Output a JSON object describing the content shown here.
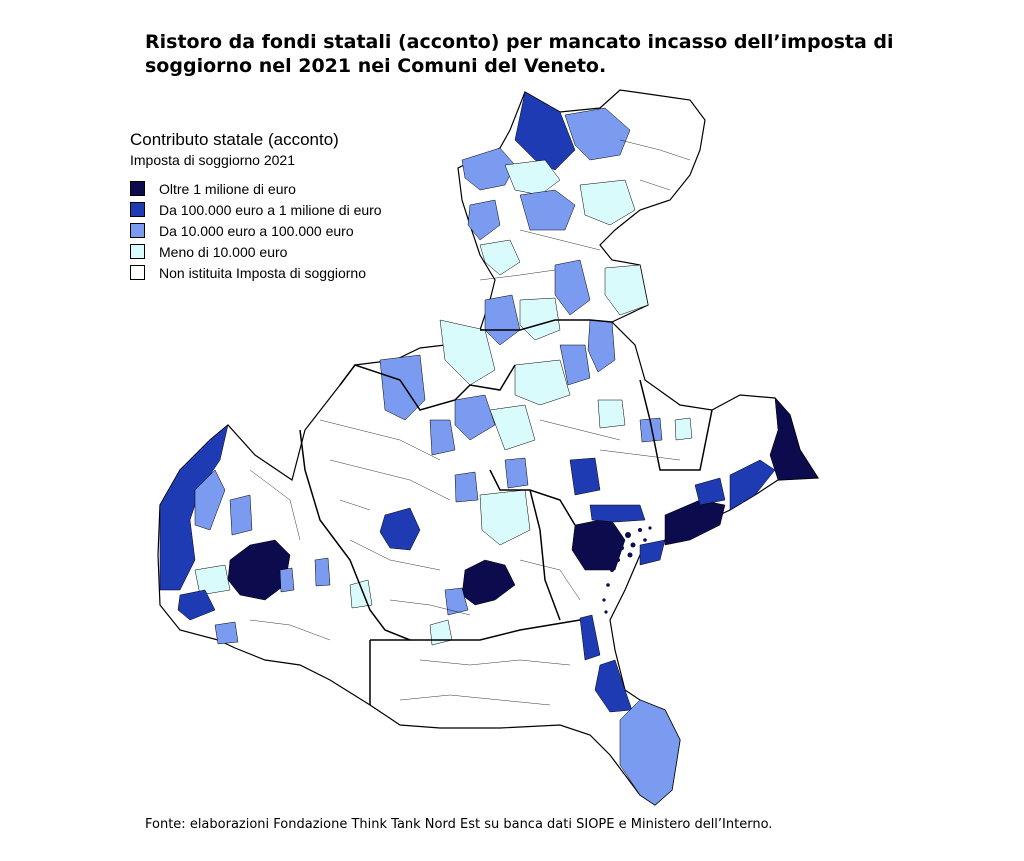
{
  "title_line1": "Ristoro da fondi statali (acconto) per mancato incasso dell’imposta di",
  "title_line2": "soggiorno nel 2021 nei Comuni del Veneto.",
  "legend": {
    "title": "Contributo statale (acconto)",
    "subtitle": "Imposta di soggiorno 2021",
    "items": [
      {
        "label": "Oltre 1 milione di euro",
        "color": "#0b0b4e"
      },
      {
        "label": "Da 100.000 euro a 1 milione di euro",
        "color": "#1f3bb3"
      },
      {
        "label": "Da 10.000 euro a 100.000 euro",
        "color": "#7b9bf0"
      },
      {
        "label": "Meno di 10.000 euro",
        "color": "#d9fbfb"
      },
      {
        "label": "Non istituita Imposta di soggiorno",
        "color": "#ffffff"
      }
    ]
  },
  "source": "Fonte: elaborazioni Fondazione Think Tank Nord Est su banca dati SIOPE e Ministero dell’Interno."
}
